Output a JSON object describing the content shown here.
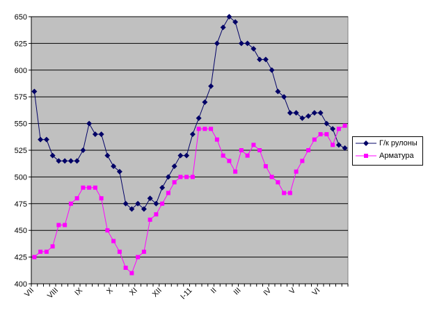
{
  "chart_data": {
    "type": "line",
    "title": "",
    "xlabel": "",
    "ylabel": "",
    "ylim": [
      400,
      650
    ],
    "yticks": [
      400,
      425,
      450,
      475,
      500,
      525,
      550,
      575,
      600,
      625,
      650
    ],
    "grid": true,
    "legend_placement": "right",
    "plot_background": "#c0c0c0",
    "category_labels": {
      "0": "VII",
      "4": "VIII",
      "8": "IX",
      "13": "X",
      "17": "XI",
      "21": "XII",
      "26": "I-11",
      "30": "II",
      "34": "III",
      "39": "IV",
      "43": "V",
      "47": "VI"
    },
    "n_categories": 52,
    "series": [
      {
        "name": "Г/к рулоны",
        "color": "#000066",
        "marker": "diamond",
        "values": [
          580,
          535,
          535,
          520,
          515,
          515,
          515,
          515,
          525,
          550,
          540,
          540,
          520,
          510,
          505,
          475,
          470,
          475,
          470,
          480,
          475,
          490,
          500,
          510,
          520,
          520,
          540,
          555,
          570,
          585,
          625,
          640,
          650,
          645,
          625,
          625,
          620,
          610,
          610,
          600,
          580,
          575,
          560,
          560,
          555,
          557,
          560,
          560,
          550,
          545,
          530,
          527
        ]
      },
      {
        "name": "Арматура",
        "color": "#ff00ff",
        "marker": "square",
        "values": [
          425,
          430,
          430,
          435,
          455,
          455,
          475,
          480,
          490,
          490,
          490,
          480,
          450,
          440,
          430,
          415,
          410,
          425,
          430,
          460,
          465,
          475,
          485,
          495,
          500,
          500,
          500,
          545,
          545,
          545,
          535,
          520,
          515,
          505,
          525,
          520,
          530,
          525,
          510,
          500,
          495,
          485,
          485,
          505,
          515,
          525,
          535,
          540,
          540,
          530,
          545,
          548
        ]
      }
    ]
  }
}
